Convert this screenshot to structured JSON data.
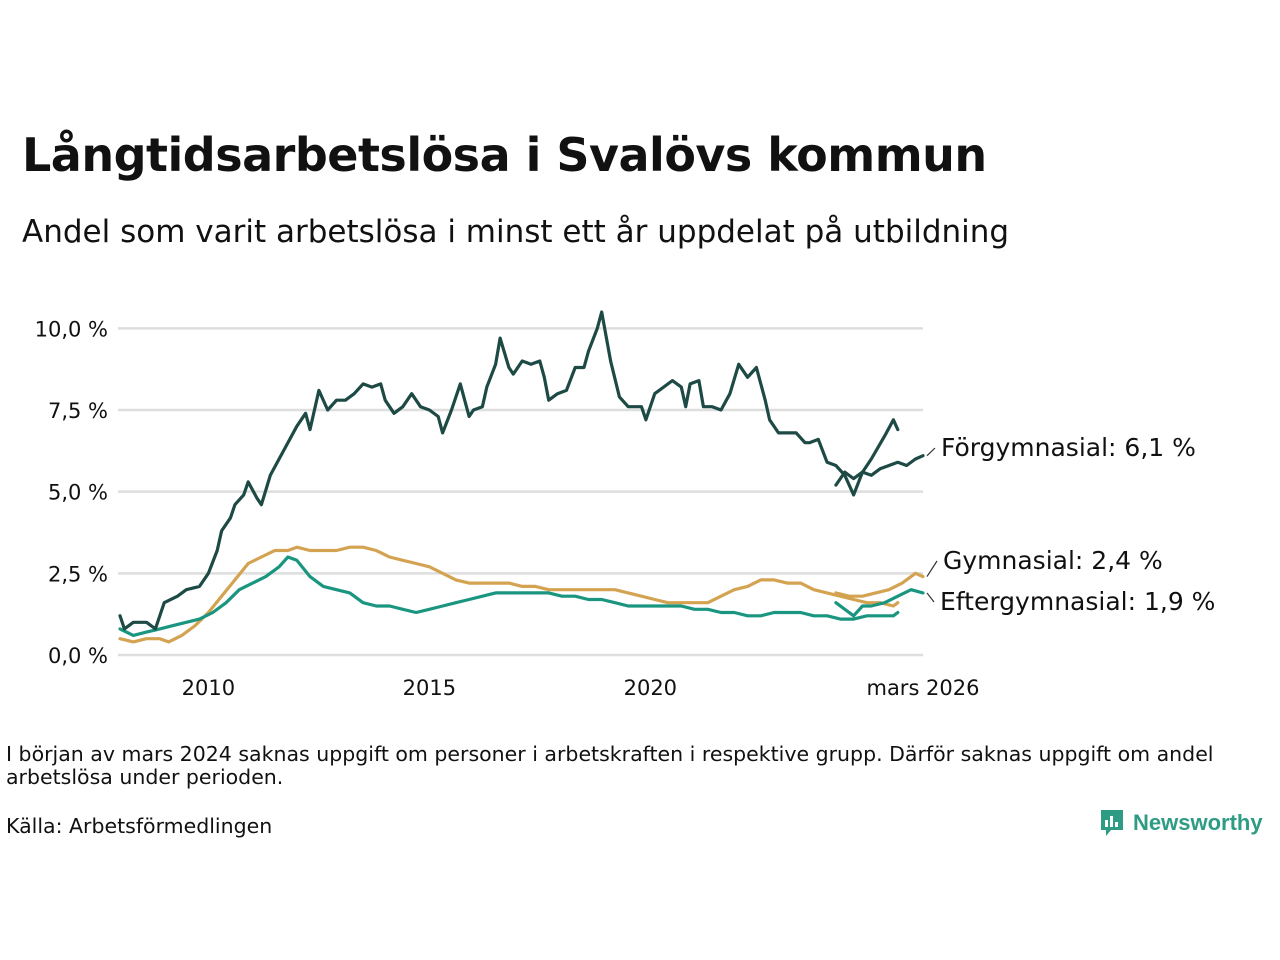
{
  "title": "Långtidsarbetslösa i Svalövs kommun",
  "subtitle": "Andel som varit arbetslösa i minst ett år uppdelat på utbildning",
  "note": "I början av mars 2024 saknas uppgift om personer i arbetskraften i respektive grupp. Därför saknas uppgift om andel arbetslösa under perioden.",
  "source": "Källa: Arbetsförmedlingen",
  "brand": "Newsworthy",
  "chart_data": {
    "type": "line",
    "x_ticks": [
      {
        "x": 2010,
        "label": "2010"
      },
      {
        "x": 2015,
        "label": "2015"
      },
      {
        "x": 2020,
        "label": "2020"
      },
      {
        "x": 2026.17,
        "label": "mars 2026"
      }
    ],
    "y_ticks": [
      {
        "y": 0,
        "label": "0,0 %"
      },
      {
        "y": 2.5,
        "label": "2,5 %"
      },
      {
        "y": 5,
        "label": "5,0 %"
      },
      {
        "y": 7.5,
        "label": "7,5 %"
      },
      {
        "y": 10,
        "label": "10,0 %"
      }
    ],
    "xlim": [
      2008.0,
      2026.17
    ],
    "ylim": [
      0,
      10.5
    ],
    "grid": true,
    "series": [
      {
        "name": "Förgymnasial",
        "label": "Förgymnasial: 6,1 %",
        "color": "#1d4a44",
        "segments": [
          [
            [
              2008.0,
              1.2
            ],
            [
              2008.1,
              0.8
            ],
            [
              2008.3,
              1.0
            ],
            [
              2008.6,
              1.0
            ],
            [
              2008.8,
              0.8
            ],
            [
              2009.0,
              1.6
            ],
            [
              2009.3,
              1.8
            ],
            [
              2009.5,
              2.0
            ],
            [
              2009.8,
              2.1
            ],
            [
              2010.0,
              2.5
            ],
            [
              2010.2,
              3.2
            ],
            [
              2010.3,
              3.8
            ],
            [
              2010.5,
              4.2
            ],
            [
              2010.6,
              4.6
            ],
            [
              2010.8,
              4.9
            ],
            [
              2010.9,
              5.3
            ],
            [
              2011.1,
              4.8
            ],
            [
              2011.2,
              4.6
            ],
            [
              2011.4,
              5.5
            ],
            [
              2011.6,
              6.0
            ],
            [
              2011.8,
              6.5
            ],
            [
              2012.0,
              7.0
            ],
            [
              2012.2,
              7.4
            ],
            [
              2012.3,
              6.9
            ],
            [
              2012.5,
              8.1
            ],
            [
              2012.7,
              7.5
            ],
            [
              2012.9,
              7.8
            ],
            [
              2013.1,
              7.8
            ],
            [
              2013.3,
              8.0
            ],
            [
              2013.5,
              8.3
            ],
            [
              2013.7,
              8.2
            ],
            [
              2013.9,
              8.3
            ],
            [
              2014.0,
              7.8
            ],
            [
              2014.2,
              7.4
            ],
            [
              2014.4,
              7.6
            ],
            [
              2014.6,
              8.0
            ],
            [
              2014.8,
              7.6
            ],
            [
              2015.0,
              7.5
            ],
            [
              2015.2,
              7.3
            ],
            [
              2015.3,
              6.8
            ],
            [
              2015.5,
              7.5
            ],
            [
              2015.7,
              8.3
            ],
            [
              2015.9,
              7.3
            ],
            [
              2016.0,
              7.5
            ],
            [
              2016.2,
              7.6
            ],
            [
              2016.3,
              8.2
            ],
            [
              2016.5,
              8.9
            ],
            [
              2016.6,
              9.7
            ],
            [
              2016.8,
              8.8
            ],
            [
              2016.9,
              8.6
            ],
            [
              2017.1,
              9.0
            ],
            [
              2017.3,
              8.9
            ],
            [
              2017.5,
              9.0
            ],
            [
              2017.6,
              8.5
            ],
            [
              2017.7,
              7.8
            ],
            [
              2017.9,
              8.0
            ],
            [
              2018.1,
              8.1
            ],
            [
              2018.3,
              8.8
            ],
            [
              2018.5,
              8.8
            ],
            [
              2018.6,
              9.3
            ],
            [
              2018.8,
              10.0
            ],
            [
              2018.9,
              10.5
            ],
            [
              2019.1,
              9.0
            ],
            [
              2019.3,
              7.9
            ],
            [
              2019.5,
              7.6
            ],
            [
              2019.8,
              7.6
            ],
            [
              2019.9,
              7.2
            ],
            [
              2020.1,
              8.0
            ],
            [
              2020.3,
              8.2
            ],
            [
              2020.5,
              8.4
            ],
            [
              2020.7,
              8.2
            ],
            [
              2020.8,
              7.6
            ],
            [
              2020.9,
              8.3
            ],
            [
              2021.1,
              8.4
            ],
            [
              2021.2,
              7.6
            ],
            [
              2021.4,
              7.6
            ],
            [
              2021.6,
              7.5
            ],
            [
              2021.8,
              8.0
            ],
            [
              2022.0,
              8.9
            ],
            [
              2022.2,
              8.5
            ],
            [
              2022.4,
              8.8
            ],
            [
              2022.6,
              7.8
            ],
            [
              2022.7,
              7.2
            ],
            [
              2022.9,
              6.8
            ],
            [
              2023.1,
              6.8
            ],
            [
              2023.3,
              6.8
            ],
            [
              2023.5,
              6.5
            ],
            [
              2023.6,
              6.5
            ],
            [
              2023.8,
              6.6
            ],
            [
              2024.0,
              5.9
            ],
            [
              2024.2,
              5.8
            ],
            [
              2024.4,
              5.5
            ],
            [
              2024.6,
              4.9
            ],
            [
              2024.8,
              5.6
            ],
            [
              2025.0,
              6.0
            ],
            [
              2025.3,
              6.7
            ],
            [
              2025.5,
              7.2
            ],
            [
              2025.6,
              6.9
            ]
          ],
          [
            [
              2024.2,
              5.2
            ],
            [
              2024.4,
              5.6
            ],
            [
              2024.6,
              5.4
            ],
            [
              2024.8,
              5.6
            ],
            [
              2025.0,
              5.5
            ],
            [
              2025.2,
              5.7
            ],
            [
              2025.4,
              5.8
            ],
            [
              2025.6,
              5.9
            ],
            [
              2025.8,
              5.8
            ],
            [
              2026.0,
              6.0
            ],
            [
              2026.17,
              6.1
            ]
          ]
        ]
      },
      {
        "name": "Gymnasial",
        "label": "Gymnasial: 2,4 %",
        "color": "#d4a352",
        "segments": [
          [
            [
              2008.0,
              0.5
            ],
            [
              2008.3,
              0.4
            ],
            [
              2008.6,
              0.5
            ],
            [
              2008.9,
              0.5
            ],
            [
              2009.1,
              0.4
            ],
            [
              2009.4,
              0.6
            ],
            [
              2009.7,
              0.9
            ],
            [
              2010.0,
              1.3
            ],
            [
              2010.3,
              1.8
            ],
            [
              2010.6,
              2.3
            ],
            [
              2010.9,
              2.8
            ],
            [
              2011.2,
              3.0
            ],
            [
              2011.5,
              3.2
            ],
            [
              2011.8,
              3.2
            ],
            [
              2012.0,
              3.3
            ],
            [
              2012.3,
              3.2
            ],
            [
              2012.6,
              3.2
            ],
            [
              2012.9,
              3.2
            ],
            [
              2013.2,
              3.3
            ],
            [
              2013.5,
              3.3
            ],
            [
              2013.8,
              3.2
            ],
            [
              2014.1,
              3.0
            ],
            [
              2014.4,
              2.9
            ],
            [
              2014.7,
              2.8
            ],
            [
              2015.0,
              2.7
            ],
            [
              2015.3,
              2.5
            ],
            [
              2015.6,
              2.3
            ],
            [
              2015.9,
              2.2
            ],
            [
              2016.2,
              2.2
            ],
            [
              2016.5,
              2.2
            ],
            [
              2016.8,
              2.2
            ],
            [
              2017.1,
              2.1
            ],
            [
              2017.4,
              2.1
            ],
            [
              2017.7,
              2.0
            ],
            [
              2018.0,
              2.0
            ],
            [
              2018.3,
              2.0
            ],
            [
              2018.6,
              2.0
            ],
            [
              2018.9,
              2.0
            ],
            [
              2019.2,
              2.0
            ],
            [
              2019.5,
              1.9
            ],
            [
              2019.8,
              1.8
            ],
            [
              2020.1,
              1.7
            ],
            [
              2020.4,
              1.6
            ],
            [
              2020.7,
              1.6
            ],
            [
              2021.0,
              1.6
            ],
            [
              2021.3,
              1.6
            ],
            [
              2021.6,
              1.8
            ],
            [
              2021.9,
              2.0
            ],
            [
              2022.2,
              2.1
            ],
            [
              2022.5,
              2.3
            ],
            [
              2022.8,
              2.3
            ],
            [
              2023.1,
              2.2
            ],
            [
              2023.4,
              2.2
            ],
            [
              2023.7,
              2.0
            ],
            [
              2024.0,
              1.9
            ],
            [
              2024.3,
              1.8
            ],
            [
              2024.6,
              1.7
            ],
            [
              2024.9,
              1.6
            ],
            [
              2025.2,
              1.6
            ],
            [
              2025.5,
              1.5
            ],
            [
              2025.6,
              1.6
            ]
          ],
          [
            [
              2024.2,
              1.9
            ],
            [
              2024.5,
              1.8
            ],
            [
              2024.8,
              1.8
            ],
            [
              2025.1,
              1.9
            ],
            [
              2025.4,
              2.0
            ],
            [
              2025.7,
              2.2
            ],
            [
              2026.0,
              2.5
            ],
            [
              2026.17,
              2.4
            ]
          ]
        ]
      },
      {
        "name": "Eftergymnasial",
        "label": "Eftergymnasial: 1,9 %",
        "color": "#1a9680",
        "segments": [
          [
            [
              2008.0,
              0.8
            ],
            [
              2008.3,
              0.6
            ],
            [
              2008.6,
              0.7
            ],
            [
              2008.9,
              0.8
            ],
            [
              2009.2,
              0.9
            ],
            [
              2009.5,
              1.0
            ],
            [
              2009.8,
              1.1
            ],
            [
              2010.1,
              1.3
            ],
            [
              2010.4,
              1.6
            ],
            [
              2010.7,
              2.0
            ],
            [
              2011.0,
              2.2
            ],
            [
              2011.3,
              2.4
            ],
            [
              2011.6,
              2.7
            ],
            [
              2011.8,
              3.0
            ],
            [
              2012.0,
              2.9
            ],
            [
              2012.3,
              2.4
            ],
            [
              2012.6,
              2.1
            ],
            [
              2012.9,
              2.0
            ],
            [
              2013.2,
              1.9
            ],
            [
              2013.5,
              1.6
            ],
            [
              2013.8,
              1.5
            ],
            [
              2014.1,
              1.5
            ],
            [
              2014.4,
              1.4
            ],
            [
              2014.7,
              1.3
            ],
            [
              2015.0,
              1.4
            ],
            [
              2015.3,
              1.5
            ],
            [
              2015.6,
              1.6
            ],
            [
              2015.9,
              1.7
            ],
            [
              2016.2,
              1.8
            ],
            [
              2016.5,
              1.9
            ],
            [
              2016.8,
              1.9
            ],
            [
              2017.1,
              1.9
            ],
            [
              2017.4,
              1.9
            ],
            [
              2017.7,
              1.9
            ],
            [
              2018.0,
              1.8
            ],
            [
              2018.3,
              1.8
            ],
            [
              2018.6,
              1.7
            ],
            [
              2018.9,
              1.7
            ],
            [
              2019.2,
              1.6
            ],
            [
              2019.5,
              1.5
            ],
            [
              2019.8,
              1.5
            ],
            [
              2020.1,
              1.5
            ],
            [
              2020.4,
              1.5
            ],
            [
              2020.7,
              1.5
            ],
            [
              2021.0,
              1.4
            ],
            [
              2021.3,
              1.4
            ],
            [
              2021.6,
              1.3
            ],
            [
              2021.9,
              1.3
            ],
            [
              2022.2,
              1.2
            ],
            [
              2022.5,
              1.2
            ],
            [
              2022.8,
              1.3
            ],
            [
              2023.1,
              1.3
            ],
            [
              2023.4,
              1.3
            ],
            [
              2023.7,
              1.2
            ],
            [
              2024.0,
              1.2
            ],
            [
              2024.3,
              1.1
            ],
            [
              2024.6,
              1.1
            ],
            [
              2024.9,
              1.2
            ],
            [
              2025.2,
              1.2
            ],
            [
              2025.5,
              1.2
            ],
            [
              2025.6,
              1.3
            ]
          ],
          [
            [
              2024.2,
              1.6
            ],
            [
              2024.4,
              1.4
            ],
            [
              2024.6,
              1.2
            ],
            [
              2024.8,
              1.5
            ],
            [
              2025.0,
              1.5
            ],
            [
              2025.3,
              1.6
            ],
            [
              2025.6,
              1.8
            ],
            [
              2025.9,
              2.0
            ],
            [
              2026.17,
              1.9
            ]
          ]
        ]
      }
    ]
  }
}
